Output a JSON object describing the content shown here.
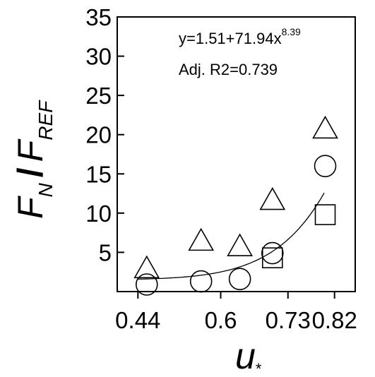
{
  "chart_data": {
    "type": "scatter",
    "xlabel_main": "u",
    "xlabel_sub": "*",
    "ylabel_parts": {
      "f1": "F",
      "s1": "N",
      "slash": "/",
      "f2": "F",
      "s2": "REF"
    },
    "xticks": [
      0.44,
      0.6,
      0.73,
      0.82
    ],
    "xtick_labels": [
      "0.44",
      "0.6",
      "0.73",
      "0.82"
    ],
    "yticks": [
      5,
      10,
      15,
      20,
      25,
      30,
      35
    ],
    "ytick_labels": [
      "5",
      "10",
      "15",
      "20",
      "25",
      "30",
      "35"
    ],
    "xlim": [
      0.4,
      0.86
    ],
    "ylim": [
      0,
      35
    ],
    "grid": false,
    "series": [
      {
        "marker": "triangle",
        "x": [
          0.457,
          0.562,
          0.637,
          0.7,
          0.802
        ],
        "y": [
          2.8,
          6.3,
          5.6,
          11.5,
          20.6
        ]
      },
      {
        "marker": "circle",
        "x": [
          0.457,
          0.562,
          0.637,
          0.7,
          0.802
        ],
        "y": [
          0.9,
          1.3,
          1.6,
          4.9,
          16.0
        ]
      },
      {
        "marker": "square",
        "x": [
          0.7,
          0.802
        ],
        "y": [
          4.3,
          9.8
        ]
      }
    ],
    "fit": {
      "intercept": 1.51,
      "coef": 71.94,
      "exponent": 8.39,
      "x_from": 0.44,
      "x_to": 0.8
    },
    "annotations": {
      "equation_base": "y=1.51+71.94x",
      "equation_exp": "8.39",
      "r2": "Adj. R2=0.739"
    }
  }
}
